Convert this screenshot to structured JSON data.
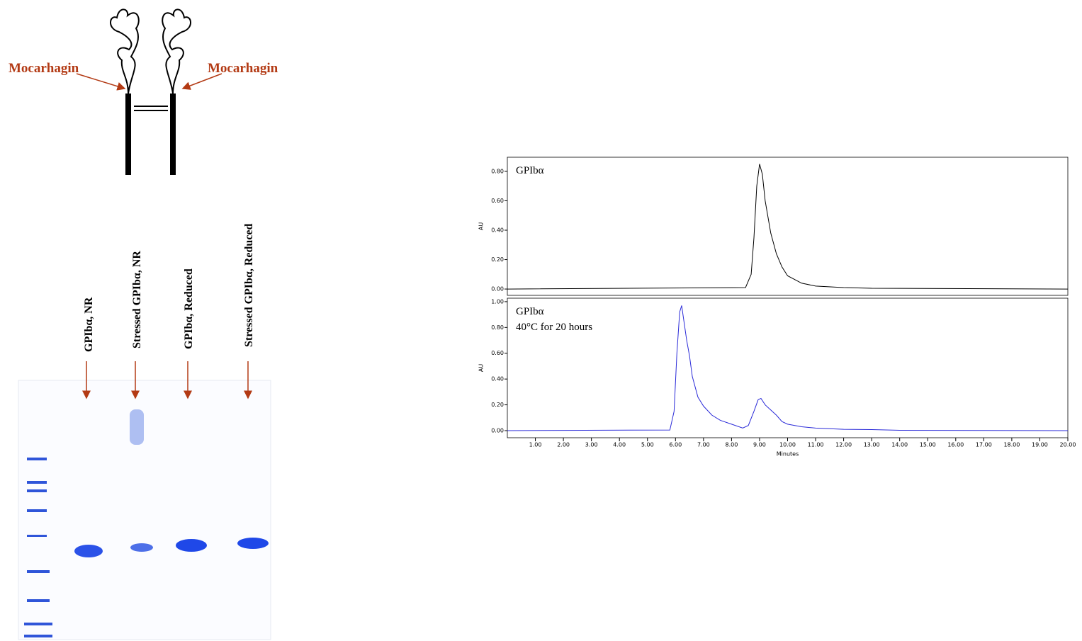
{
  "diagram": {
    "labels": [
      "Mocarhagin",
      "Mocarhagin"
    ]
  },
  "gel": {
    "lanes": [
      "GPIbα, NR",
      "Stressed GPIbα, NR",
      "GPIbα, Reduced",
      "Stressed GPIbα, Reduced"
    ]
  },
  "chart_data": [
    {
      "type": "line",
      "annotations": [
        "GPIbα"
      ],
      "ylabel": "AU",
      "xlim": [
        0,
        20
      ],
      "ylim": [
        -0.043,
        0.896
      ],
      "yticks": [
        {
          "value": 0,
          "label": "0.00"
        },
        {
          "value": 0.2,
          "label": "0.20"
        },
        {
          "value": 0.4,
          "label": "0.40"
        },
        {
          "value": 0.6,
          "label": "0.60"
        },
        {
          "value": 0.8,
          "label": "0.80"
        }
      ],
      "x": [
        0,
        8.5,
        8.7,
        8.8,
        8.9,
        9.0,
        9.1,
        9.2,
        9.4,
        9.6,
        9.8,
        10,
        10.5,
        11,
        12,
        13,
        20
      ],
      "series": [
        {
          "color": "#000000",
          "values": [
            0,
            0.01,
            0.1,
            0.35,
            0.7,
            0.85,
            0.78,
            0.6,
            0.38,
            0.24,
            0.15,
            0.09,
            0.04,
            0.02,
            0.01,
            0.005,
            0
          ]
        }
      ]
    },
    {
      "type": "line",
      "annotations": [
        "GPIbα",
        "40°C for 20 hours"
      ],
      "ylabel": "AU",
      "xlabel": "Minutes",
      "xlim": [
        0,
        20
      ],
      "ylim": [
        -0.055,
        1.027
      ],
      "xticks": [
        {
          "value": 1,
          "label": "1.00"
        },
        {
          "value": 2,
          "label": "2.00"
        },
        {
          "value": 3,
          "label": "3.00"
        },
        {
          "value": 4,
          "label": "4.00"
        },
        {
          "value": 5,
          "label": "5.00"
        },
        {
          "value": 6,
          "label": "6.00"
        },
        {
          "value": 7,
          "label": "7.00"
        },
        {
          "value": 8,
          "label": "8.00"
        },
        {
          "value": 9,
          "label": "9.00"
        },
        {
          "value": 10,
          "label": "10.00"
        },
        {
          "value": 11,
          "label": "11.00"
        },
        {
          "value": 12,
          "label": "12.00"
        },
        {
          "value": 13,
          "label": "13.00"
        },
        {
          "value": 14,
          "label": "14.00"
        },
        {
          "value": 15,
          "label": "15.00"
        },
        {
          "value": 16,
          "label": "16.00"
        },
        {
          "value": 17,
          "label": "17.00"
        },
        {
          "value": 18,
          "label": "18.00"
        },
        {
          "value": 19,
          "label": "19.00"
        },
        {
          "value": 20,
          "label": "20.00"
        }
      ],
      "yticks": [
        {
          "value": 0,
          "label": "0.00"
        },
        {
          "value": 0.2,
          "label": "0.20"
        },
        {
          "value": 0.4,
          "label": "0.40"
        },
        {
          "value": 0.6,
          "label": "0.60"
        },
        {
          "value": 0.8,
          "label": "0.80"
        },
        {
          "value": 1,
          "label": "1.00"
        }
      ],
      "x": [
        0,
        5.8,
        5.95,
        6.05,
        6.15,
        6.22,
        6.3,
        6.4,
        6.5,
        6.6,
        6.8,
        7.0,
        7.3,
        7.6,
        8.0,
        8.4,
        8.6,
        8.8,
        8.95,
        9.05,
        9.2,
        9.4,
        9.6,
        9.8,
        10,
        10.5,
        11,
        12,
        13,
        14,
        20
      ],
      "series": [
        {
          "color": "#2a2ad8",
          "values": [
            0,
            0.005,
            0.15,
            0.6,
            0.92,
            0.97,
            0.85,
            0.7,
            0.58,
            0.42,
            0.26,
            0.19,
            0.12,
            0.08,
            0.05,
            0.02,
            0.04,
            0.15,
            0.24,
            0.25,
            0.2,
            0.16,
            0.12,
            0.07,
            0.05,
            0.03,
            0.02,
            0.01,
            0.008,
            0.003,
            0
          ]
        }
      ]
    }
  ]
}
